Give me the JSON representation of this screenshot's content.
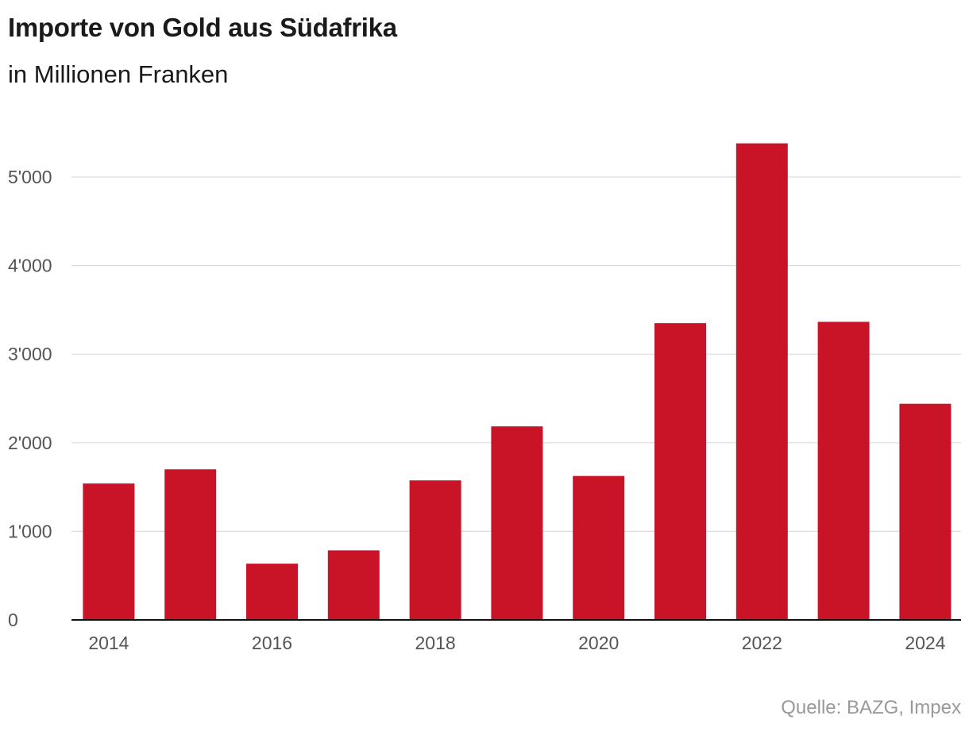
{
  "title": "Importe von Gold aus Südafrika",
  "subtitle": "in Millionen Franken",
  "source": "Quelle: BAZG, Impex",
  "colors": {
    "bar": "#c91428",
    "grid": "#dddddd",
    "axis": "#111111",
    "tick_text": "#555555",
    "source_text": "#999999"
  },
  "chart_data": {
    "type": "bar",
    "title": "Importe von Gold aus Südafrika",
    "subtitle": "in Millionen Franken",
    "xlabel": "",
    "ylabel": "",
    "categories": [
      "2014",
      "2015",
      "2016",
      "2017",
      "2018",
      "2019",
      "2020",
      "2021",
      "2022",
      "2023",
      "2024"
    ],
    "values": [
      1540,
      1700,
      635,
      785,
      1575,
      2185,
      1625,
      3350,
      5380,
      3365,
      2440
    ],
    "x_tick_labels": [
      "2014",
      "",
      "2016",
      "",
      "2018",
      "",
      "2020",
      "",
      "2022",
      "",
      "2024"
    ],
    "y_ticks": [
      0,
      1000,
      2000,
      3000,
      4000,
      5000
    ],
    "y_tick_labels": [
      "0",
      "1'000",
      "2'000",
      "3'000",
      "4'000",
      "5'000"
    ],
    "ylim": [
      0,
      5380
    ],
    "grid": true,
    "legend": "none"
  }
}
